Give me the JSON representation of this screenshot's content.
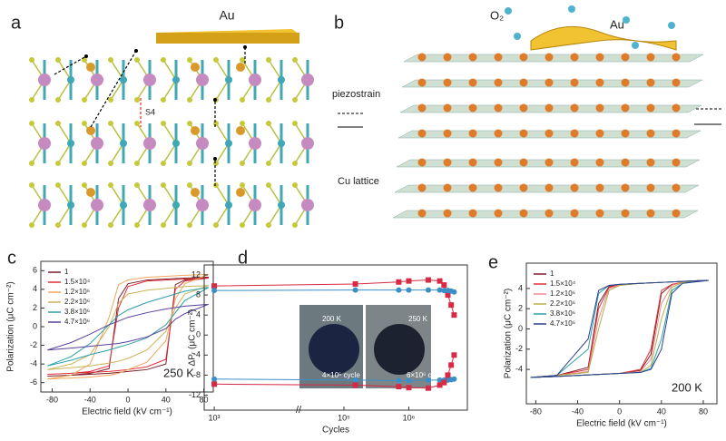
{
  "figure": {
    "panel_a": {
      "label": "a",
      "au": "Au",
      "site": "S4"
    },
    "panel_b": {
      "label": "b",
      "o2": "O₂",
      "au": "Au",
      "strain": "piezostrain",
      "lattice": "Cu lattice"
    }
  },
  "chart_data": [
    {
      "type": "line",
      "panel_label": "c",
      "xlabel": "Electric field (kV cm⁻¹)",
      "ylabel": "Polarization (μC cm⁻²)",
      "annotations": [
        "250 K"
      ],
      "legend": "upper left",
      "xlim": [
        -92,
        90
      ],
      "ylim": [
        -7,
        7
      ],
      "xticks": [
        -80,
        -40,
        0,
        40,
        80
      ],
      "yticks": [
        -6,
        -4,
        -2,
        0,
        2,
        4,
        6
      ],
      "x": [
        -85,
        -60,
        -40,
        -20,
        -10,
        0,
        20,
        40,
        50,
        60,
        85,
        60,
        40,
        20,
        0,
        -10,
        -20,
        -40,
        -60,
        -85
      ],
      "series": [
        {
          "name": "1",
          "color": "#7a1f2b",
          "values": [
            -5.3,
            -5.2,
            -5.1,
            -5.0,
            -4.9,
            -4.8,
            -4.6,
            -4.0,
            4.5,
            5.0,
            5.3,
            5.2,
            5.1,
            5.0,
            4.6,
            3.0,
            -4.5,
            -5.0,
            -5.2,
            -5.3
          ]
        },
        {
          "name": "1.5×10⁴",
          "color": "#e0303a",
          "values": [
            -5.1,
            -5.0,
            -4.9,
            -4.8,
            -4.7,
            -4.6,
            -4.3,
            -3.5,
            4.0,
            4.9,
            5.2,
            5.1,
            5.0,
            4.9,
            4.3,
            2.0,
            -4.2,
            -4.8,
            -5.0,
            -5.1
          ]
        },
        {
          "name": "1.2×10⁶",
          "color": "#f2a65a",
          "values": [
            -5.6,
            -5.5,
            -5.4,
            -5.2,
            -5.0,
            -4.6,
            -3.8,
            -1.5,
            3.0,
            4.6,
            5.6,
            5.5,
            5.4,
            5.3,
            5.0,
            4.5,
            1.0,
            -4.0,
            -5.2,
            -5.6
          ]
        },
        {
          "name": "2.2×10⁶",
          "color": "#c9b458",
          "values": [
            -4.6,
            -4.4,
            -4.2,
            -3.9,
            -3.7,
            -3.4,
            -2.5,
            -0.5,
            2.0,
            3.5,
            4.4,
            4.3,
            4.1,
            3.9,
            3.5,
            2.5,
            0.0,
            -3.0,
            -4.0,
            -4.6
          ]
        },
        {
          "name": "3.8×10⁶",
          "color": "#2aa0a8",
          "values": [
            -4.2,
            -3.6,
            -3.0,
            -2.5,
            -2.2,
            -1.9,
            -1.2,
            0.2,
            1.5,
            2.8,
            4.2,
            3.8,
            3.2,
            2.6,
            1.8,
            1.2,
            0.2,
            -1.8,
            -3.2,
            -4.2
          ]
        },
        {
          "name": "4.7×10⁶",
          "color": "#5b3f9e",
          "values": [
            -2.5,
            -2.3,
            -2.1,
            -1.9,
            -1.8,
            -1.6,
            -1.1,
            -0.2,
            0.8,
            1.4,
            2.4,
            2.2,
            1.9,
            1.5,
            1.0,
            0.6,
            0.2,
            -0.8,
            -1.7,
            -2.5
          ]
        }
      ]
    },
    {
      "type": "line",
      "panel_label": "d",
      "xlabel": "Cycles",
      "ylabel": "ΔPᵣ (μC cm⁻²)",
      "xscale": "log",
      "annotations": [
        "200 K",
        "4×10⁵ cycle",
        "250 K",
        "6×10⁶ cycle"
      ],
      "xlim": [
        700,
        8000000
      ],
      "ylim": [
        -15,
        14
      ],
      "xticks": [
        {
          "value": 1000,
          "label": "10³"
        },
        {
          "value": 100000,
          "label": "10⁵"
        },
        {
          "value": 1000000,
          "label": "10⁶"
        }
      ],
      "yticks": [
        -12,
        -8,
        -4,
        0,
        4,
        8,
        12
      ],
      "x": [
        1000,
        150000,
        700000,
        1000000,
        2000000,
        3000000,
        3500000,
        4000000,
        4500000,
        5000000
      ],
      "series": [
        {
          "color": "#d62a45",
          "marker": "square",
          "values": [
            9.8,
            10.2,
            10.6,
            10.8,
            11.0,
            10.8,
            10.0,
            8.0,
            6.0,
            4.0
          ]
        },
        {
          "color": "#3a8fc8",
          "marker": "circle",
          "values": [
            8.9,
            9.0,
            9.0,
            9.0,
            9.0,
            9.0,
            8.9,
            8.9,
            8.8,
            8.6
          ]
        },
        {
          "color": "#3a8fc8",
          "marker": "circle",
          "values": [
            -8.8,
            -9.0,
            -9.1,
            -9.1,
            -9.0,
            -9.0,
            -9.0,
            -9.0,
            -8.9,
            -8.8
          ]
        },
        {
          "color": "#d62a45",
          "marker": "square",
          "values": [
            -9.8,
            -10.0,
            -10.3,
            -10.5,
            -10.6,
            -10.0,
            -9.5,
            -8.0,
            -6.0,
            -4.0
          ]
        }
      ]
    },
    {
      "type": "line",
      "panel_label": "e",
      "xlabel": "Electric field (kV cm⁻¹)",
      "ylabel": "Polarization (μC cm⁻²)",
      "annotations": [
        "200 K"
      ],
      "legend": "upper left",
      "xlim": [
        -89,
        93
      ],
      "ylim": [
        -7.4,
        6.5
      ],
      "xticks": [
        -80,
        -40,
        0,
        40,
        80
      ],
      "yticks": [
        -4,
        -2,
        0,
        2,
        4
      ],
      "x": [
        -85,
        -60,
        -40,
        -20,
        0,
        20,
        30,
        40,
        50,
        60,
        85,
        60,
        40,
        20,
        0,
        -10,
        -20,
        -30,
        -60,
        -85
      ],
      "series": [
        {
          "name": "1",
          "color": "#7a1f2b",
          "values": [
            -4.8,
            -4.7,
            -4.6,
            -4.5,
            -4.4,
            -4.1,
            -2.5,
            3.5,
            4.4,
            4.6,
            4.8,
            4.7,
            4.6,
            4.5,
            4.4,
            4.2,
            2.5,
            -3.8,
            -4.6,
            -4.8
          ]
        },
        {
          "name": "1.5×10⁴",
          "color": "#e0303a",
          "values": [
            -4.8,
            -4.7,
            -4.6,
            -4.5,
            -4.4,
            -4.0,
            -2.0,
            3.8,
            4.4,
            4.6,
            4.8,
            4.7,
            4.6,
            4.5,
            4.4,
            4.1,
            2.0,
            -4.0,
            -4.6,
            -4.8
          ]
        },
        {
          "name": "1.2×10⁶",
          "color": "#f08a8a",
          "values": [
            -4.8,
            -4.7,
            -4.6,
            -4.5,
            -4.4,
            -4.2,
            -3.0,
            2.5,
            4.3,
            4.6,
            4.8,
            4.7,
            4.6,
            4.5,
            4.3,
            4.0,
            1.0,
            -4.2,
            -4.6,
            -4.8
          ]
        },
        {
          "name": "2.2×10⁶",
          "color": "#b5b04a",
          "values": [
            -4.8,
            -4.7,
            -4.6,
            -4.5,
            -4.4,
            -4.3,
            -3.6,
            1.0,
            4.1,
            4.6,
            4.8,
            4.7,
            4.6,
            4.5,
            4.3,
            3.8,
            0.0,
            -4.3,
            -4.6,
            -4.8
          ]
        },
        {
          "name": "3.8×10⁶",
          "color": "#2aa0a8",
          "values": [
            -4.8,
            -4.7,
            -4.6,
            -4.5,
            -4.4,
            -4.3,
            -3.9,
            -1.0,
            3.8,
            4.5,
            4.8,
            4.7,
            4.6,
            4.5,
            4.4,
            4.3,
            3.5,
            -2.0,
            -4.6,
            -4.8
          ]
        },
        {
          "name": "4.7×10⁶",
          "color": "#2b3f8c",
          "values": [
            -4.8,
            -4.7,
            -4.6,
            -4.5,
            -4.4,
            -4.3,
            -4.0,
            -2.0,
            3.5,
            4.5,
            4.8,
            4.7,
            4.6,
            4.5,
            4.4,
            4.3,
            3.8,
            -1.0,
            -4.6,
            -4.8
          ]
        }
      ]
    }
  ]
}
